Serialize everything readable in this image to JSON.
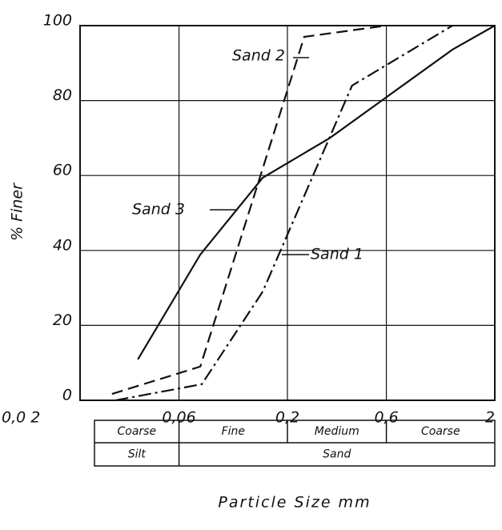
{
  "chart_data": {
    "type": "line",
    "xlabel": "Particle Size mm",
    "ylabel": "% Finer",
    "xscale": "log",
    "grid": true,
    "xlim": [
      0.02,
      2
    ],
    "ylim": [
      0,
      100
    ],
    "xticks": [
      {
        "value": 0.02,
        "label": "0,0 2"
      },
      {
        "value": 0.06,
        "label": "0,06"
      },
      {
        "value": 0.2,
        "label": "0,2"
      },
      {
        "value": 0.6,
        "label": "0,6"
      },
      2
    ],
    "yticks": [
      0,
      20,
      40,
      60,
      80,
      100
    ],
    "series": [
      {
        "name": "Sand 1",
        "color": "#111111",
        "dash": "dashdot",
        "x": [
          0.0297,
          0.0773,
          0.152,
          0.41,
          1.25
        ],
        "values": [
          0,
          4.3,
          29,
          84,
          100
        ]
      },
      {
        "name": "Sand 2",
        "color": "#111111",
        "dash": "dashed",
        "x": [
          0.0285,
          0.076,
          0.241,
          0.598
        ],
        "values": [
          1.7,
          9,
          97,
          100
        ]
      },
      {
        "name": "Sand 3",
        "color": "#111111",
        "dash": "solid",
        "x": [
          0.038,
          0.076,
          0.152,
          0.32,
          1.25,
          2
        ],
        "values": [
          10.9,
          38.9,
          59.4,
          70,
          93.6,
          100
        ]
      }
    ],
    "size_classes": {
      "top": [
        "Coarse",
        "Fine",
        "Medium",
        "Coarse"
      ],
      "bottom": [
        "Silt",
        "Sand"
      ]
    }
  }
}
